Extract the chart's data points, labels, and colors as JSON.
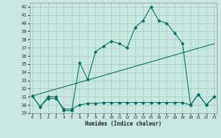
{
  "xlabel": "Humidex (Indice chaleur)",
  "ylabel": "",
  "bg_color": "#c8e8e0",
  "grid_color": "#a0c8c0",
  "line_color": "#007060",
  "ylim": [
    29,
    42.5
  ],
  "xlim": [
    -0.3,
    23.3
  ],
  "yticks": [
    29,
    30,
    31,
    32,
    33,
    34,
    35,
    36,
    37,
    38,
    39,
    40,
    41,
    42
  ],
  "xticks": [
    0,
    1,
    2,
    3,
    4,
    5,
    6,
    7,
    8,
    9,
    10,
    11,
    12,
    13,
    14,
    15,
    16,
    17,
    18,
    19,
    20,
    21,
    22,
    23
  ],
  "line1_x": [
    0,
    1,
    2,
    3,
    4,
    5,
    6,
    7,
    8,
    9,
    10,
    11,
    12,
    13,
    14,
    15,
    16,
    17,
    18,
    19,
    20,
    21,
    22,
    23
  ],
  "line1_y": [
    31.1,
    29.8,
    31.0,
    31.0,
    29.3,
    29.3,
    35.2,
    33.1,
    36.5,
    37.2,
    37.8,
    37.5,
    37.0,
    39.5,
    40.3,
    42.0,
    40.3,
    40.0,
    38.8,
    37.5,
    30.0,
    31.3,
    30.0,
    31.0
  ],
  "line2_x": [
    0,
    1,
    2,
    3,
    4,
    5,
    6,
    7,
    8,
    9,
    10,
    11,
    12,
    13,
    14,
    15,
    16,
    17,
    18,
    19,
    20,
    21,
    22,
    23
  ],
  "line2_y": [
    31.1,
    29.8,
    30.8,
    30.8,
    29.5,
    29.5,
    30.0,
    30.2,
    30.2,
    30.3,
    30.3,
    30.3,
    30.3,
    30.3,
    30.3,
    30.3,
    30.3,
    30.3,
    30.3,
    30.3,
    30.0,
    31.3,
    30.0,
    31.0
  ],
  "line3_x": [
    0,
    23
  ],
  "line3_y": [
    31.1,
    37.5
  ]
}
